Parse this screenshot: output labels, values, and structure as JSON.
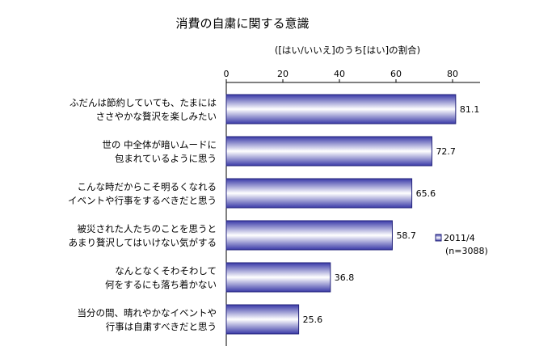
{
  "chart_data": {
    "type": "bar",
    "orientation": "horizontal",
    "title": "消費の自粛に関する意識",
    "subtitle": "([はい/いいえ]のうち[はい]の割合)",
    "xlim": [
      0,
      90
    ],
    "x_ticks": [
      "0",
      "20",
      "40",
      "60",
      "80"
    ],
    "categories": [
      [
        "ふだんは節約していても、たまには",
        "ささやかな贅沢を楽しみたい"
      ],
      [
        "世の 中全体が暗いムードに",
        "包まれているように思う"
      ],
      [
        "こんな時だからこそ明るくなれる",
        "イベントや行事をするべきだと思う"
      ],
      [
        "被災された人たちのことを思うと",
        "あまり贅沢してはいけない気がする"
      ],
      [
        "なんとなくそわそわして",
        "何をするにも落ち着かない"
      ],
      [
        "当分の間、晴れやかなイベントや",
        "行事は自粛すべきだと思う"
      ]
    ],
    "series": [
      {
        "name": "2011/4",
        "note": "(n=3088)",
        "values": [
          81.1,
          72.7,
          65.6,
          58.7,
          36.8,
          25.6
        ],
        "labels": [
          "81.1",
          "72.7",
          "65.6",
          "58.7",
          "36.8",
          "25.6"
        ]
      }
    ],
    "legend_position": "right",
    "grid": false,
    "colors": {
      "bar_edge": "#22227a",
      "bar_dark": "#3a3aa8",
      "bar_light": "#ffffff"
    }
  }
}
